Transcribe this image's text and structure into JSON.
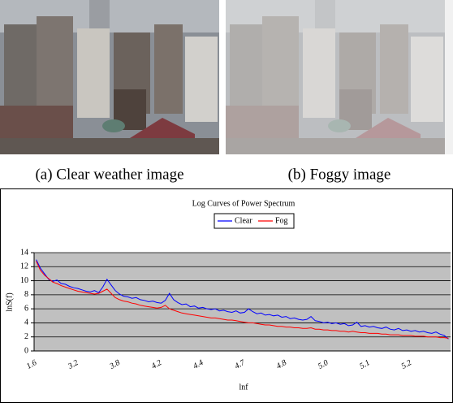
{
  "captions": [
    "(a) Clear weather image",
    "(b) Foggy image"
  ],
  "chart_data": {
    "type": "line",
    "title": "Log Curves of Power Spectrum",
    "x_label": "lnf",
    "y_label": "lnS(f)",
    "categories": [
      "1.6",
      null,
      null,
      null,
      null,
      null,
      null,
      null,
      null,
      null,
      "3.2",
      null,
      null,
      null,
      null,
      null,
      null,
      null,
      null,
      null,
      "3.8",
      null,
      null,
      null,
      null,
      null,
      null,
      null,
      null,
      null,
      "4.2",
      null,
      null,
      null,
      null,
      null,
      null,
      null,
      null,
      null,
      "4.4",
      null,
      null,
      null,
      null,
      null,
      null,
      null,
      null,
      null,
      "4.7",
      null,
      null,
      null,
      null,
      null,
      null,
      null,
      null,
      null,
      "4.8",
      null,
      null,
      null,
      null,
      null,
      null,
      null,
      null,
      null,
      "5.0",
      null,
      null,
      null,
      null,
      null,
      null,
      null,
      null,
      null,
      "5.1",
      null,
      null,
      null,
      null,
      null,
      null,
      null,
      null,
      null,
      "5.2",
      null,
      null,
      null,
      null,
      null,
      null,
      null,
      null,
      null
    ],
    "series": [
      {
        "name": "Clear",
        "color": "#0000ff",
        "values": [
          13.0,
          11.8,
          11.0,
          10.2,
          9.9,
          10.1,
          9.6,
          9.5,
          9.2,
          9.0,
          8.9,
          8.7,
          8.5,
          8.4,
          8.6,
          8.3,
          9.1,
          10.2,
          9.4,
          8.6,
          8.1,
          7.8,
          7.7,
          7.5,
          7.6,
          7.3,
          7.2,
          7.0,
          7.1,
          6.9,
          6.8,
          7.2,
          8.2,
          7.3,
          6.9,
          6.6,
          6.7,
          6.3,
          6.4,
          6.1,
          6.2,
          6.0,
          5.9,
          6.0,
          5.7,
          5.8,
          5.6,
          5.5,
          5.7,
          5.4,
          5.5,
          6.0,
          5.6,
          5.3,
          5.4,
          5.1,
          5.2,
          5.0,
          5.1,
          4.8,
          4.9,
          4.6,
          4.7,
          4.5,
          4.4,
          4.5,
          4.9,
          4.3,
          4.2,
          4.0,
          4.1,
          3.9,
          4.0,
          3.8,
          3.9,
          3.6,
          3.7,
          4.1,
          3.5,
          3.6,
          3.4,
          3.5,
          3.3,
          3.2,
          3.4,
          3.1,
          3.0,
          3.2,
          2.9,
          3.0,
          2.8,
          2.9,
          2.7,
          2.8,
          2.6,
          2.5,
          2.7,
          2.4,
          2.2,
          1.7
        ]
      },
      {
        "name": "Fog",
        "color": "#ff0000",
        "values": [
          12.8,
          11.5,
          10.8,
          10.3,
          9.8,
          9.6,
          9.3,
          9.1,
          8.9,
          8.7,
          8.5,
          8.4,
          8.3,
          8.2,
          8.1,
          8.2,
          8.5,
          8.8,
          8.2,
          7.6,
          7.3,
          7.1,
          7.0,
          6.8,
          6.7,
          6.5,
          6.4,
          6.3,
          6.2,
          6.1,
          6.2,
          6.5,
          6.0,
          5.8,
          5.6,
          5.4,
          5.3,
          5.2,
          5.1,
          5.0,
          4.9,
          4.8,
          4.7,
          4.7,
          4.6,
          4.5,
          4.4,
          4.4,
          4.3,
          4.2,
          4.1,
          4.0,
          4.0,
          3.9,
          3.8,
          3.7,
          3.7,
          3.6,
          3.5,
          3.5,
          3.4,
          3.4,
          3.3,
          3.3,
          3.2,
          3.2,
          3.3,
          3.1,
          3.1,
          3.0,
          3.0,
          2.9,
          2.9,
          2.8,
          2.8,
          2.7,
          2.8,
          2.7,
          2.6,
          2.6,
          2.5,
          2.5,
          2.5,
          2.4,
          2.4,
          2.3,
          2.3,
          2.3,
          2.2,
          2.2,
          2.2,
          2.1,
          2.1,
          2.1,
          2.0,
          2.0,
          2.0,
          1.9,
          1.9,
          1.8
        ]
      }
    ],
    "ylim": [
      0,
      14
    ],
    "yticks": [
      0,
      2,
      4,
      6,
      8,
      10,
      12,
      14
    ],
    "grid": true,
    "plot_background": "#c0c0c0",
    "legend": "top"
  }
}
